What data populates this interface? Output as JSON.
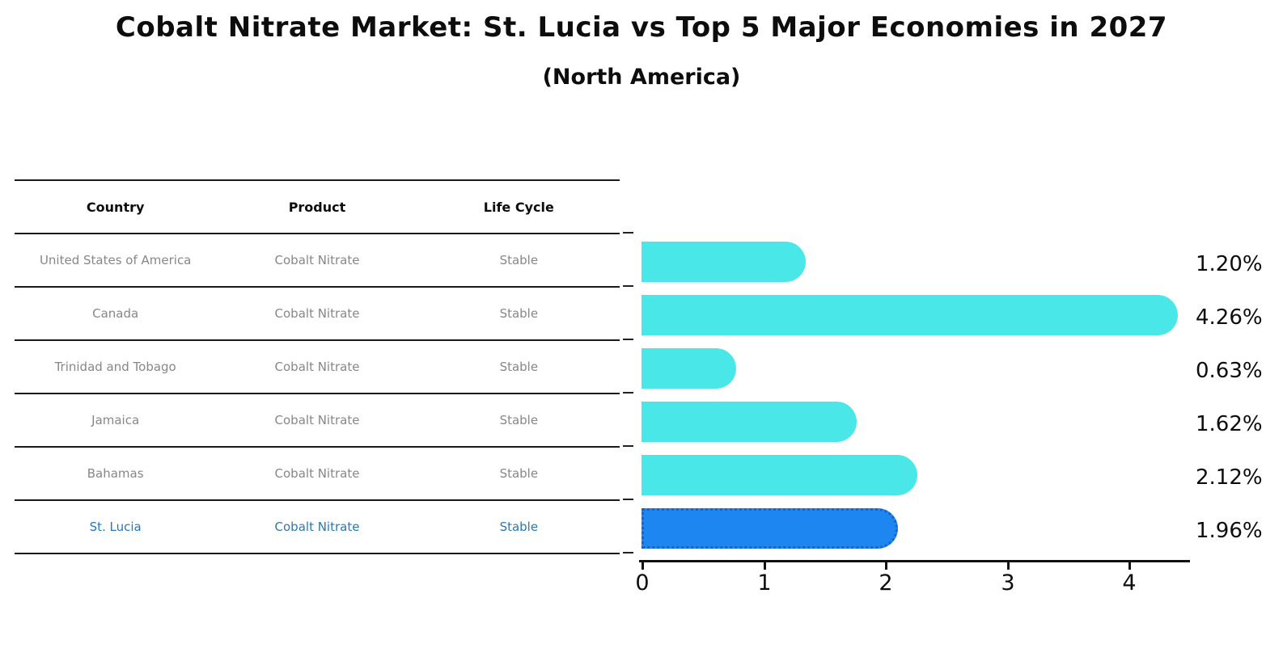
{
  "title": "Cobalt Nitrate Market: St. Lucia vs Top 5 Major Economies in 2027",
  "subtitle": "(North America)",
  "table": {
    "headers": [
      "Country",
      "Product",
      "Life Cycle"
    ],
    "rows": [
      {
        "country": "United States of America",
        "product": "Cobalt Nitrate",
        "life_cycle": "Stable",
        "highlighted": false
      },
      {
        "country": "Canada",
        "product": "Cobalt Nitrate",
        "life_cycle": "Stable",
        "highlighted": false
      },
      {
        "country": "Trinidad and Tobago",
        "product": "Cobalt Nitrate",
        "life_cycle": "Stable",
        "highlighted": false
      },
      {
        "country": "Jamaica",
        "product": "Cobalt Nitrate",
        "life_cycle": "Stable",
        "highlighted": false
      },
      {
        "country": "Bahamas",
        "product": "Cobalt Nitrate",
        "life_cycle": "Stable",
        "highlighted": false
      },
      {
        "country": "St. Lucia",
        "product": "Cobalt Nitrate",
        "life_cycle": "Stable",
        "highlighted": true
      }
    ]
  },
  "chart_data": {
    "type": "bar",
    "orientation": "horizontal",
    "title": "Cobalt Nitrate Market: St. Lucia vs Top 5 Major Economies in 2027",
    "subtitle": "(North America)",
    "categories": [
      "United States of America",
      "Canada",
      "Trinidad and Tobago",
      "Jamaica",
      "Bahamas",
      "St. Lucia"
    ],
    "values": [
      1.2,
      4.26,
      0.63,
      1.62,
      2.12,
      1.96
    ],
    "value_labels": [
      "1.20%",
      "4.26%",
      "0.63%",
      "1.62%",
      "2.12%",
      "1.96%"
    ],
    "xlabel": "",
    "ylabel": "",
    "x_ticks": [
      "0",
      "1",
      "2",
      "3",
      "4"
    ],
    "xlim": [
      0,
      4.5
    ],
    "grid": false,
    "legend": false,
    "bar_color": "#4AE7E8",
    "highlight": {
      "index": 5,
      "bar_color": "#1E86F0",
      "border_color": "#1565C8",
      "border_style": "dotted",
      "text_color": "#2878B8"
    }
  }
}
